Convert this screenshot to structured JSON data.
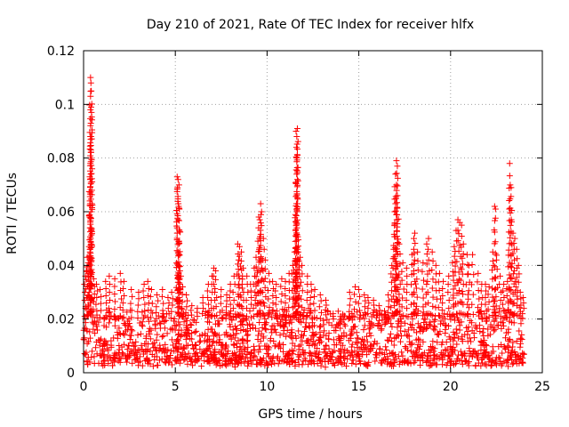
{
  "chart_data": {
    "type": "scatter",
    "title": "Day 210 of 2021, Rate Of TEC Index for receiver hlfx",
    "xlabel": "GPS time / hours",
    "ylabel": "ROTI / TECUs",
    "xlim": [
      0,
      25
    ],
    "ylim": [
      0,
      0.12
    ],
    "xticks": [
      0,
      5,
      10,
      15,
      20,
      25
    ],
    "xtick_labels": [
      "0",
      "5",
      "10",
      "15",
      "20",
      "25"
    ],
    "yticks": [
      0,
      0.02,
      0.04,
      0.06,
      0.08,
      0.1,
      0.12
    ],
    "ytick_labels": [
      "0",
      "0.02",
      "0.04",
      "0.06",
      "0.08",
      "0.1",
      "0.12"
    ],
    "grid": true,
    "marker": "+",
    "color": "#ff0000",
    "series": [
      {
        "name": "ROTI",
        "points": [
          [
            0.38,
            0.11
          ],
          [
            0.4,
            0.108
          ],
          [
            0.42,
            0.105
          ],
          [
            0.41,
            0.099
          ],
          [
            0.43,
            0.097
          ],
          [
            0.37,
            0.088
          ],
          [
            0.39,
            0.087
          ],
          [
            0.36,
            0.072
          ],
          [
            0.4,
            0.071
          ],
          [
            0.33,
            0.058
          ],
          [
            0.3,
            0.047
          ],
          [
            0.2,
            0.043
          ],
          [
            0.25,
            0.041
          ],
          [
            0.15,
            0.038
          ],
          [
            0.1,
            0.036
          ],
          [
            0.55,
            0.035
          ],
          [
            0.7,
            0.033
          ],
          [
            0.9,
            0.031
          ],
          [
            1.2,
            0.034
          ],
          [
            1.4,
            0.036
          ],
          [
            1.7,
            0.035
          ],
          [
            2.0,
            0.037
          ],
          [
            2.2,
            0.034
          ],
          [
            2.6,
            0.031
          ],
          [
            3.0,
            0.03
          ],
          [
            3.3,
            0.033
          ],
          [
            3.5,
            0.034
          ],
          [
            3.7,
            0.031
          ],
          [
            4.0,
            0.029
          ],
          [
            4.3,
            0.031
          ],
          [
            4.6,
            0.028
          ],
          [
            4.8,
            0.03
          ],
          [
            5.1,
            0.073
          ],
          [
            5.15,
            0.072
          ],
          [
            5.2,
            0.07
          ],
          [
            5.12,
            0.069
          ],
          [
            5.18,
            0.062
          ],
          [
            5.22,
            0.061
          ],
          [
            5.2,
            0.049
          ],
          [
            5.15,
            0.04
          ],
          [
            5.25,
            0.038
          ],
          [
            5.3,
            0.036
          ],
          [
            5.4,
            0.032
          ],
          [
            5.6,
            0.029
          ],
          [
            5.9,
            0.025
          ],
          [
            6.2,
            0.024
          ],
          [
            6.5,
            0.028
          ],
          [
            6.8,
            0.033
          ],
          [
            7.0,
            0.036
          ],
          [
            7.1,
            0.039
          ],
          [
            7.2,
            0.038
          ],
          [
            7.5,
            0.031
          ],
          [
            7.8,
            0.029
          ],
          [
            8.0,
            0.033
          ],
          [
            8.2,
            0.036
          ],
          [
            8.4,
            0.048
          ],
          [
            8.5,
            0.047
          ],
          [
            8.6,
            0.045
          ],
          [
            8.45,
            0.042
          ],
          [
            8.7,
            0.039
          ],
          [
            8.9,
            0.036
          ],
          [
            9.1,
            0.033
          ],
          [
            9.3,
            0.039
          ],
          [
            9.4,
            0.043
          ],
          [
            9.5,
            0.049
          ],
          [
            9.6,
            0.057
          ],
          [
            9.55,
            0.058
          ],
          [
            9.65,
            0.063
          ],
          [
            9.7,
            0.06
          ],
          [
            9.8,
            0.05
          ],
          [
            9.9,
            0.042
          ],
          [
            10.1,
            0.037
          ],
          [
            10.3,
            0.034
          ],
          [
            10.5,
            0.033
          ],
          [
            10.8,
            0.035
          ],
          [
            11.0,
            0.034
          ],
          [
            11.2,
            0.037
          ],
          [
            11.4,
            0.04
          ],
          [
            11.5,
            0.045
          ],
          [
            11.55,
            0.053
          ],
          [
            11.6,
            0.063
          ],
          [
            11.58,
            0.071
          ],
          [
            11.62,
            0.08
          ],
          [
            11.65,
            0.081
          ],
          [
            11.6,
            0.084
          ],
          [
            11.62,
            0.088
          ],
          [
            11.65,
            0.091
          ],
          [
            11.58,
            0.09
          ],
          [
            11.7,
            0.045
          ],
          [
            11.8,
            0.043
          ],
          [
            11.9,
            0.04
          ],
          [
            12.2,
            0.036
          ],
          [
            12.4,
            0.033
          ],
          [
            12.6,
            0.031
          ],
          [
            12.9,
            0.029
          ],
          [
            13.2,
            0.027
          ],
          [
            13.6,
            0.022
          ],
          [
            14.0,
            0.021
          ],
          [
            14.5,
            0.03
          ],
          [
            14.8,
            0.032
          ],
          [
            15.0,
            0.031
          ],
          [
            15.3,
            0.029
          ],
          [
            15.5,
            0.028
          ],
          [
            15.8,
            0.027
          ],
          [
            16.1,
            0.025
          ],
          [
            16.4,
            0.023
          ],
          [
            16.6,
            0.029
          ],
          [
            16.8,
            0.04
          ],
          [
            16.9,
            0.046
          ],
          [
            16.95,
            0.06
          ],
          [
            17.0,
            0.063
          ],
          [
            17.05,
            0.07
          ],
          [
            17.0,
            0.074
          ],
          [
            17.05,
            0.079
          ],
          [
            17.1,
            0.077
          ],
          [
            17.1,
            0.066
          ],
          [
            17.2,
            0.048
          ],
          [
            17.4,
            0.041
          ],
          [
            17.6,
            0.039
          ],
          [
            17.9,
            0.044
          ],
          [
            18.0,
            0.05
          ],
          [
            18.05,
            0.052
          ],
          [
            18.2,
            0.045
          ],
          [
            18.5,
            0.041
          ],
          [
            18.7,
            0.048
          ],
          [
            18.8,
            0.05
          ],
          [
            19.0,
            0.045
          ],
          [
            19.2,
            0.04
          ],
          [
            19.4,
            0.037
          ],
          [
            19.6,
            0.034
          ],
          [
            19.9,
            0.036
          ],
          [
            20.1,
            0.041
          ],
          [
            20.2,
            0.047
          ],
          [
            20.3,
            0.053
          ],
          [
            20.4,
            0.057
          ],
          [
            20.5,
            0.056
          ],
          [
            20.6,
            0.055
          ],
          [
            20.7,
            0.048
          ],
          [
            20.9,
            0.044
          ],
          [
            21.0,
            0.04
          ],
          [
            21.2,
            0.044
          ],
          [
            21.5,
            0.037
          ],
          [
            21.7,
            0.033
          ],
          [
            21.9,
            0.033
          ],
          [
            22.1,
            0.032
          ],
          [
            22.3,
            0.045
          ],
          [
            22.4,
            0.062
          ],
          [
            22.45,
            0.061
          ],
          [
            22.5,
            0.042
          ],
          [
            22.7,
            0.036
          ],
          [
            22.9,
            0.033
          ],
          [
            23.1,
            0.034
          ],
          [
            23.2,
            0.061
          ],
          [
            23.25,
            0.07
          ],
          [
            23.3,
            0.069
          ],
          [
            23.22,
            0.078
          ],
          [
            23.4,
            0.052
          ],
          [
            23.5,
            0.05
          ],
          [
            23.6,
            0.046
          ],
          [
            23.7,
            0.04
          ],
          [
            23.8,
            0.03
          ],
          [
            23.95,
            0.028
          ]
        ],
        "baseline": {
          "x_range": [
            0,
            24
          ],
          "y_floor": 0.002,
          "y_typical_max": 0.022,
          "note": "dense cloud of points across the full day"
        }
      }
    ]
  }
}
